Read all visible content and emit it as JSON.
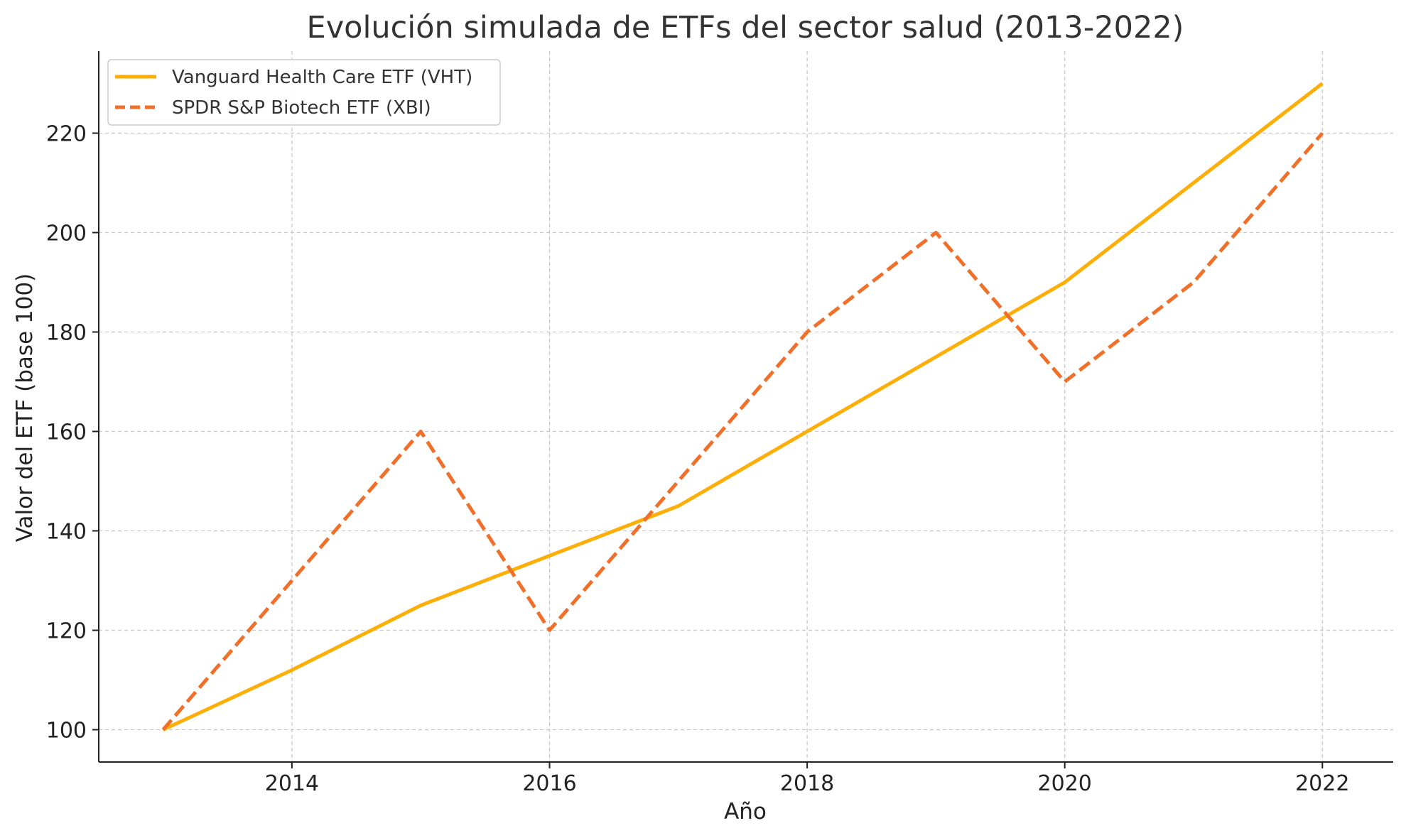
{
  "chart_data": {
    "type": "line",
    "title": "Evolución simulada de ETFs del sector salud (2013-2022)",
    "xlabel": "Año",
    "ylabel": "Valor del ETF (base 100)",
    "x": [
      2013,
      2014,
      2015,
      2016,
      2017,
      2018,
      2019,
      2020,
      2021,
      2022
    ],
    "xlim": [
      2012.5,
      2022.55
    ],
    "ylim": [
      93.5,
      236.5
    ],
    "xticks": [
      2014,
      2016,
      2018,
      2020,
      2022
    ],
    "yticks": [
      100,
      120,
      140,
      160,
      180,
      200,
      220
    ],
    "grid": true,
    "legend_position": "top-left",
    "series": [
      {
        "name": "Vanguard Health Care ETF (VHT)",
        "values": [
          100,
          112,
          125,
          135,
          145,
          160,
          175,
          190,
          210,
          230
        ],
        "color": "#FDAE07",
        "style": "solid"
      },
      {
        "name": "SPDR S&P Biotech ETF (XBI)",
        "values": [
          100,
          130,
          160,
          120,
          150,
          180,
          200,
          170,
          190,
          220
        ],
        "color": "#F0702A",
        "style": "dashed"
      }
    ]
  }
}
